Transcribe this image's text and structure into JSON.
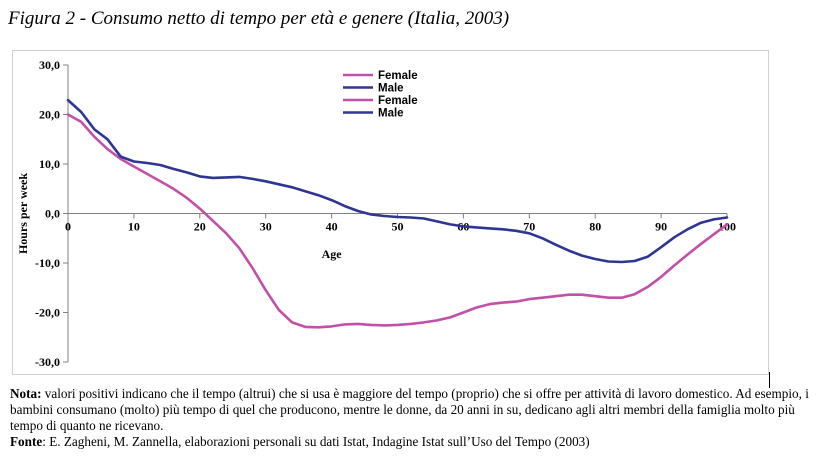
{
  "title": "Figura 2 - Consumo netto di tempo per età e genere (Italia, 2003)",
  "chart_data": {
    "type": "line",
    "xlabel": "Age",
    "ylabel": "Hours per week",
    "xlim": [
      0,
      100
    ],
    "ylim": [
      -30,
      30
    ],
    "xticks": [
      0,
      10,
      20,
      30,
      40,
      50,
      60,
      70,
      80,
      90,
      100
    ],
    "yticks": [
      30,
      20,
      10,
      0,
      -10,
      -20,
      -30
    ],
    "xtick_labels": [
      "0",
      "10",
      "20",
      "30",
      "40",
      "50",
      "60",
      "70",
      "80",
      "90",
      "100"
    ],
    "ytick_labels": [
      "30,0",
      "20,0",
      "10,0",
      "0,0",
      "-10,0",
      "-20,0",
      "-30,0"
    ],
    "grid": false,
    "legend_position": "top-center",
    "legend_entries": [
      {
        "label": "Female",
        "color": "#c050a8"
      },
      {
        "label": "Male",
        "color": "#2e3593"
      },
      {
        "label": "Female",
        "color": "#c050a8"
      },
      {
        "label": "Male",
        "color": "#2e3593"
      }
    ],
    "series": [
      {
        "name": "Female",
        "color": "#c050a8",
        "x": [
          0,
          2,
          4,
          6,
          8,
          10,
          12,
          14,
          16,
          18,
          20,
          22,
          24,
          26,
          28,
          30,
          32,
          34,
          36,
          38,
          40,
          42,
          44,
          46,
          48,
          50,
          52,
          54,
          56,
          58,
          60,
          62,
          64,
          66,
          68,
          70,
          72,
          74,
          76,
          78,
          80,
          82,
          84,
          86,
          88,
          90,
          92,
          94,
          96,
          98,
          100
        ],
        "y": [
          20.0,
          18.5,
          15.5,
          13.0,
          11.0,
          9.5,
          8.0,
          6.5,
          5.0,
          3.2,
          1.0,
          -1.5,
          -4.0,
          -7.0,
          -11.0,
          -15.5,
          -19.5,
          -22.0,
          -22.9,
          -23.0,
          -22.8,
          -22.4,
          -22.3,
          -22.5,
          -22.6,
          -22.5,
          -22.3,
          -22.0,
          -21.6,
          -21.0,
          -20.0,
          -19.0,
          -18.3,
          -18.0,
          -17.8,
          -17.3,
          -17.0,
          -16.7,
          -16.4,
          -16.4,
          -16.7,
          -17.0,
          -17.0,
          -16.3,
          -14.8,
          -12.8,
          -10.5,
          -8.3,
          -6.2,
          -4.2,
          -2.2
        ]
      },
      {
        "name": "Male",
        "color": "#2e3593",
        "x": [
          0,
          2,
          4,
          6,
          8,
          10,
          12,
          14,
          16,
          18,
          20,
          22,
          24,
          26,
          28,
          30,
          32,
          34,
          36,
          38,
          40,
          42,
          44,
          46,
          48,
          50,
          52,
          54,
          56,
          58,
          60,
          62,
          64,
          66,
          68,
          70,
          72,
          74,
          76,
          78,
          80,
          82,
          84,
          86,
          88,
          90,
          92,
          94,
          96,
          98,
          100
        ],
        "y": [
          22.9,
          20.5,
          17.0,
          15.0,
          11.5,
          10.5,
          10.2,
          9.8,
          9.0,
          8.3,
          7.5,
          7.2,
          7.3,
          7.4,
          7.0,
          6.5,
          5.9,
          5.3,
          4.5,
          3.7,
          2.7,
          1.5,
          0.5,
          -0.2,
          -0.5,
          -0.7,
          -0.8,
          -1.0,
          -1.6,
          -2.2,
          -2.6,
          -2.8,
          -3.0,
          -3.2,
          -3.5,
          -4.0,
          -5.0,
          -6.3,
          -7.5,
          -8.5,
          -9.2,
          -9.7,
          -9.8,
          -9.6,
          -8.7,
          -6.8,
          -4.8,
          -3.2,
          -1.9,
          -1.2,
          -0.8
        ]
      }
    ]
  },
  "notes": {
    "nota_label": "Nota:",
    "nota_text": " valori positivi indicano che il tempo (altrui) che si usa è maggiore del tempo (proprio) che si offre per attività di lavoro domestico. Ad esempio, i bambini consumano (molto) più tempo di quel che producono, mentre le donne, da 20 anni in su, dedicano agli altri membri della famiglia molto più tempo di quanto ne ricevano.",
    "fonte_label": "Fonte",
    "fonte_text": ": E. Zagheni, M. Zannella, elaborazioni personali su dati Istat, Indagine Istat sull’Uso del Tempo (2003)"
  }
}
